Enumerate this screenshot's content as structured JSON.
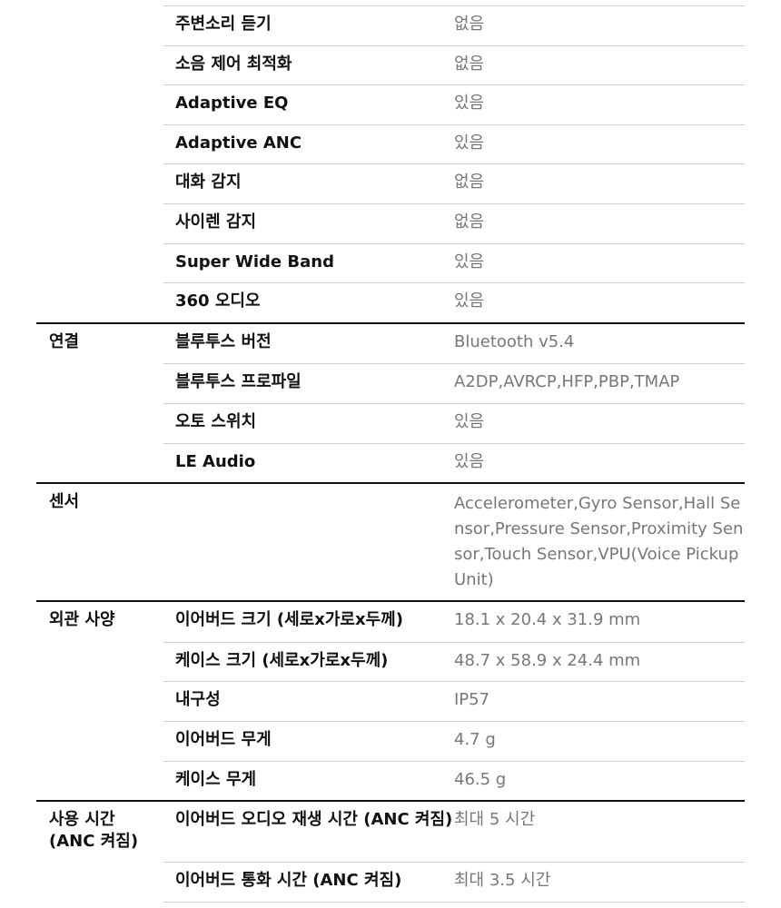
{
  "groups": [
    {
      "label": "",
      "rows": [
        {
          "label": "주변소리 듣기",
          "value": "없음"
        },
        {
          "label": "소음 제어 최적화",
          "value": "없음"
        },
        {
          "label": "Adaptive EQ",
          "value": "있음"
        },
        {
          "label": "Adaptive ANC",
          "value": "있음"
        },
        {
          "label": "대화 감지",
          "value": "없음"
        },
        {
          "label": "사이렌 감지",
          "value": "없음"
        },
        {
          "label": "Super Wide Band",
          "value": "있음"
        },
        {
          "label": "360 오디오",
          "value": "있음"
        }
      ]
    },
    {
      "label": "연결",
      "rows": [
        {
          "label": "블루투스 버전",
          "value": "Bluetooth v5.4"
        },
        {
          "label": "블루투스 프로파일",
          "value": "A2DP,AVRCP,HFP,PBP,TMAP"
        },
        {
          "label": "오토 스위치",
          "value": "있음"
        },
        {
          "label": "LE Audio",
          "value": "있음"
        }
      ]
    },
    {
      "label": "센서",
      "rows": [
        {
          "label": "",
          "value": "Accelerometer,Gyro Sensor,Hall Sensor,Pressure Sensor,Proximity Sensor,Touch Sensor,VPU(Voice Pickup Unit)"
        }
      ]
    },
    {
      "label": "외관 사양",
      "rows": [
        {
          "label": "이어버드 크기 (세로x가로x두께)",
          "value": "18.1 x 20.4 x 31.9 mm"
        },
        {
          "label": "케이스 크기 (세로x가로x두께)",
          "value": "48.7 x 58.9 x 24.4 mm"
        },
        {
          "label": "내구성",
          "value": "IP57"
        },
        {
          "label": "이어버드 무게",
          "value": "4.7 g"
        },
        {
          "label": "케이스 무게",
          "value": "46.5 g"
        }
      ]
    },
    {
      "label": "사용 시간 (ANC 켜짐)",
      "rows": [
        {
          "label": "이어버드 오디오 재생 시간 (ANC 켜짐)",
          "value": "최대 5 시간"
        },
        {
          "label": "이어버드 통화 시간 (ANC 켜짐)",
          "value": "최대 3.5 시간"
        }
      ]
    }
  ]
}
